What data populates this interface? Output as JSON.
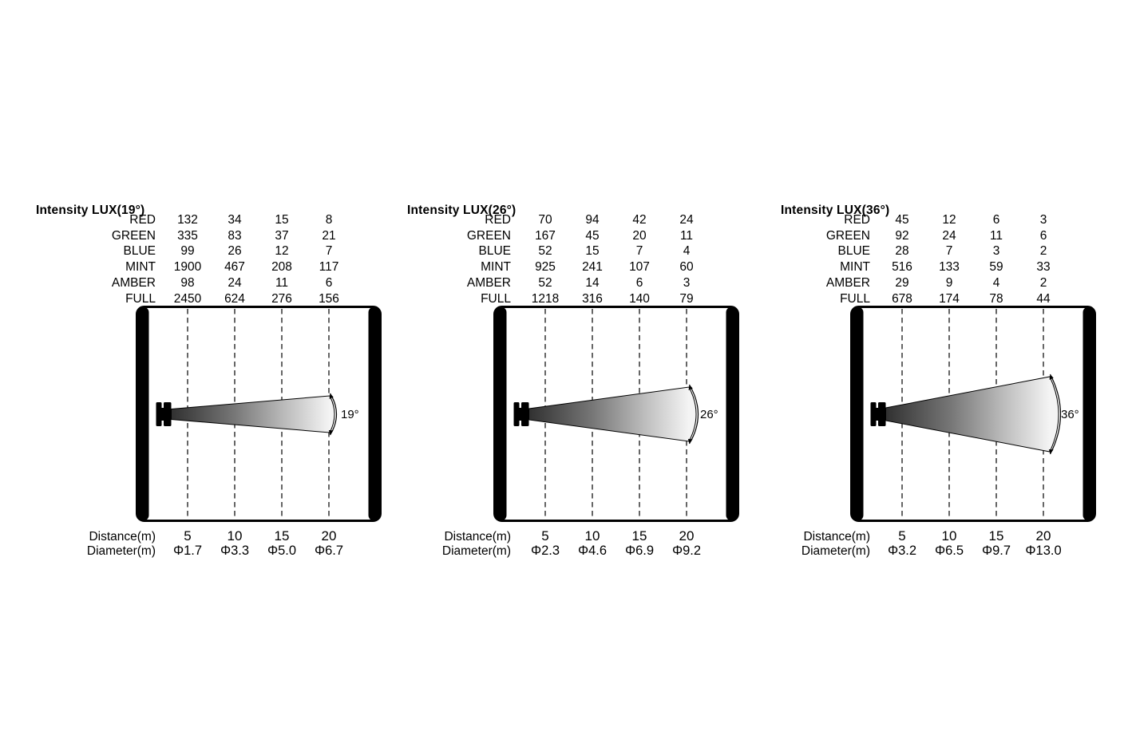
{
  "figure": {
    "row_labels": [
      "RED",
      "GREEN",
      "BLUE",
      "MINT",
      "AMBER",
      "FULL"
    ],
    "distance_label": "Distance(m)",
    "diameter_label": "Diameter(m)",
    "charts": [
      {
        "title": "Intensity LUX(19°)",
        "angle": "19°",
        "values": [
          [
            132,
            34,
            15,
            8
          ],
          [
            335,
            83,
            37,
            21
          ],
          [
            99,
            26,
            12,
            7
          ],
          [
            1900,
            467,
            208,
            117
          ],
          [
            98,
            24,
            11,
            6
          ],
          [
            2450,
            624,
            276,
            156
          ]
        ],
        "distances": [
          "5",
          "10",
          "15",
          "20"
        ],
        "diameters": [
          "Φ1.7",
          "Φ3.3",
          "Φ5.0",
          "Φ6.7"
        ]
      },
      {
        "title": "Intensity LUX(26°)",
        "angle": "26°",
        "values": [
          [
            70,
            94,
            42,
            24
          ],
          [
            167,
            45,
            20,
            11
          ],
          [
            52,
            15,
            7,
            4
          ],
          [
            925,
            241,
            107,
            60
          ],
          [
            52,
            14,
            6,
            3
          ],
          [
            1218,
            316,
            140,
            79
          ]
        ],
        "distances": [
          "5",
          "10",
          "15",
          "20"
        ],
        "diameters": [
          "Φ2.3",
          "Φ4.6",
          "Φ6.9",
          "Φ9.2"
        ]
      },
      {
        "title": "Intensity LUX(36°)",
        "angle": "36°",
        "values": [
          [
            45,
            12,
            6,
            3
          ],
          [
            92,
            24,
            11,
            6
          ],
          [
            28,
            7,
            3,
            2
          ],
          [
            516,
            133,
            59,
            33
          ],
          [
            29,
            9,
            4,
            2
          ],
          [
            678,
            174,
            78,
            44
          ]
        ],
        "distances": [
          "5",
          "10",
          "15",
          "20"
        ],
        "diameters": [
          "Φ3.2",
          "Φ6.5",
          "Φ9.7",
          "Φ13.0"
        ]
      }
    ]
  },
  "colors": {
    "ink": "#000000",
    "background": "#ffffff",
    "beam_dark": "#303030",
    "beam_light": "#f4f4f4"
  },
  "chart_data": [
    {
      "type": "table",
      "title": "Intensity LUX(19°)",
      "beam_angle_deg": 19,
      "xlabel": "Distance(m)",
      "x_distances_m": [
        5,
        10,
        15,
        20
      ],
      "series": [
        {
          "name": "RED",
          "values": [
            132,
            34,
            15,
            8
          ]
        },
        {
          "name": "GREEN",
          "values": [
            335,
            83,
            37,
            21
          ]
        },
        {
          "name": "BLUE",
          "values": [
            99,
            26,
            12,
            7
          ]
        },
        {
          "name": "MINT",
          "values": [
            1900,
            467,
            208,
            117
          ]
        },
        {
          "name": "AMBER",
          "values": [
            98,
            24,
            11,
            6
          ]
        },
        {
          "name": "FULL",
          "values": [
            2450,
            624,
            276,
            156
          ]
        }
      ],
      "beam_diameters_m": [
        1.7,
        3.3,
        5.0,
        6.7
      ]
    },
    {
      "type": "table",
      "title": "Intensity LUX(26°)",
      "beam_angle_deg": 26,
      "xlabel": "Distance(m)",
      "x_distances_m": [
        5,
        10,
        15,
        20
      ],
      "series": [
        {
          "name": "RED",
          "values": [
            70,
            94,
            42,
            24
          ]
        },
        {
          "name": "GREEN",
          "values": [
            167,
            45,
            20,
            11
          ]
        },
        {
          "name": "BLUE",
          "values": [
            52,
            15,
            7,
            4
          ]
        },
        {
          "name": "MINT",
          "values": [
            925,
            241,
            107,
            60
          ]
        },
        {
          "name": "AMBER",
          "values": [
            52,
            14,
            6,
            3
          ]
        },
        {
          "name": "FULL",
          "values": [
            1218,
            316,
            140,
            79
          ]
        }
      ],
      "beam_diameters_m": [
        2.3,
        4.6,
        6.9,
        9.2
      ]
    },
    {
      "type": "table",
      "title": "Intensity LUX(36°)",
      "beam_angle_deg": 36,
      "xlabel": "Distance(m)",
      "x_distances_m": [
        5,
        10,
        15,
        20
      ],
      "series": [
        {
          "name": "RED",
          "values": [
            45,
            12,
            6,
            3
          ]
        },
        {
          "name": "GREEN",
          "values": [
            92,
            24,
            11,
            6
          ]
        },
        {
          "name": "BLUE",
          "values": [
            28,
            7,
            3,
            2
          ]
        },
        {
          "name": "MINT",
          "values": [
            516,
            133,
            59,
            33
          ]
        },
        {
          "name": "AMBER",
          "values": [
            29,
            9,
            4,
            2
          ]
        },
        {
          "name": "FULL",
          "values": [
            678,
            174,
            78,
            44
          ]
        }
      ],
      "beam_diameters_m": [
        3.2,
        6.5,
        9.7,
        13.0
      ]
    }
  ]
}
